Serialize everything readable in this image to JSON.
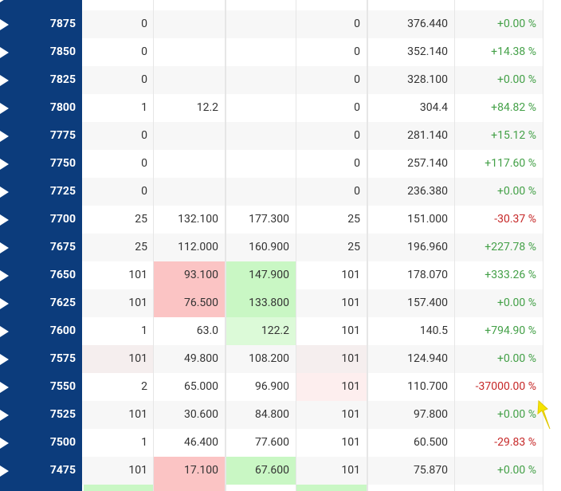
{
  "colors": {
    "up": "#43a047",
    "down": "#c62828"
  },
  "rows": [
    {
      "strike": "7875",
      "cells": [
        "0",
        null,
        null,
        "0",
        "376.440",
        "+0.00 %"
      ]
    },
    {
      "strike": "7850",
      "cells": [
        "0",
        null,
        null,
        "0",
        "352.140",
        "+14.38 %"
      ]
    },
    {
      "strike": "7825",
      "cells": [
        "0",
        null,
        null,
        "0",
        "328.100",
        "+0.00 %"
      ]
    },
    {
      "strike": "7800",
      "cells": [
        "1",
        "12.2",
        null,
        "0",
        "304.4",
        "+84.82 %"
      ]
    },
    {
      "strike": "7775",
      "cells": [
        "0",
        null,
        null,
        "0",
        "281.140",
        "+15.12 %"
      ]
    },
    {
      "strike": "7750",
      "cells": [
        "0",
        null,
        null,
        "0",
        "257.140",
        "+117.60 %"
      ]
    },
    {
      "strike": "7725",
      "cells": [
        "0",
        null,
        null,
        "0",
        "236.380",
        "+0.00 %"
      ]
    },
    {
      "strike": "7700",
      "cells": [
        "25",
        "132.100",
        "177.300",
        "25",
        "151.000",
        "-30.37 %"
      ]
    },
    {
      "strike": "7675",
      "cells": [
        "25",
        "112.000",
        "160.900",
        "25",
        "196.960",
        "+227.78 %"
      ]
    },
    {
      "strike": "7650",
      "cells": [
        "101",
        "93.100",
        "147.900",
        "101",
        "178.070",
        "+333.26 %"
      ],
      "fills": [
        null,
        "#fbc4c4",
        "#c9f7c4",
        null,
        null,
        null
      ]
    },
    {
      "strike": "7625",
      "cells": [
        "101",
        "76.500",
        "133.800",
        "101",
        "157.400",
        "+0.00 %"
      ],
      "fills": [
        null,
        "#fbc4c4",
        "#c9f7c4",
        null,
        null,
        null
      ]
    },
    {
      "strike": "7600",
      "cells": [
        "1",
        "63.0",
        "122.2",
        "101",
        "140.5",
        "+794.90 %"
      ],
      "fills": [
        null,
        null,
        "#dcfad8",
        null,
        null,
        null
      ]
    },
    {
      "strike": "7575",
      "cells": [
        "101",
        "49.800",
        "108.200",
        "101",
        "124.940",
        "+0.00 %"
      ],
      "fills": [
        "#f5eeee",
        null,
        null,
        "#f5eeee",
        null,
        null
      ]
    },
    {
      "strike": "7550",
      "cells": [
        "2",
        "65.000",
        "96.900",
        "101",
        "110.700",
        "-37000.00 %"
      ],
      "fills": [
        null,
        null,
        null,
        "#fdeeee",
        null,
        null
      ]
    },
    {
      "strike": "7525",
      "cells": [
        "101",
        "30.600",
        "84.800",
        "101",
        "97.800",
        "+0.00 %"
      ]
    },
    {
      "strike": "7500",
      "cells": [
        "1",
        "46.400",
        "77.600",
        "101",
        "60.500",
        "-29.83 %"
      ]
    },
    {
      "strike": "7475",
      "cells": [
        "101",
        "17.100",
        "67.600",
        "101",
        "75.870",
        "+0.00 %"
      ],
      "fills": [
        null,
        "#fbc4c4",
        "#c9f7c4",
        null,
        null,
        null
      ]
    }
  ]
}
